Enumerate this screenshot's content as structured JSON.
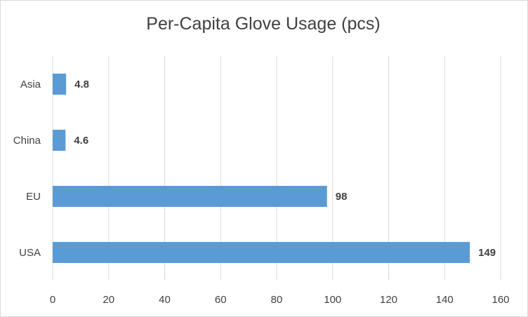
{
  "chart_data": {
    "type": "bar",
    "orientation": "horizontal",
    "title": "Per-Capita Glove Usage (pcs)",
    "xlabel": "",
    "ylabel": "",
    "categories": [
      "Asia",
      "China",
      "EU",
      "USA"
    ],
    "values": [
      4.8,
      4.6,
      98,
      149
    ],
    "value_labels": [
      "4.8",
      "4.6",
      "98",
      "149"
    ],
    "xlim": [
      0,
      160
    ],
    "x_ticks": [
      0,
      20,
      40,
      60,
      80,
      100,
      120,
      140,
      160
    ],
    "grid": "vertical",
    "legend": "none",
    "bar_color": "#5b9bd5",
    "grid_color": "#d9d9d9",
    "text_color": "#404040"
  }
}
